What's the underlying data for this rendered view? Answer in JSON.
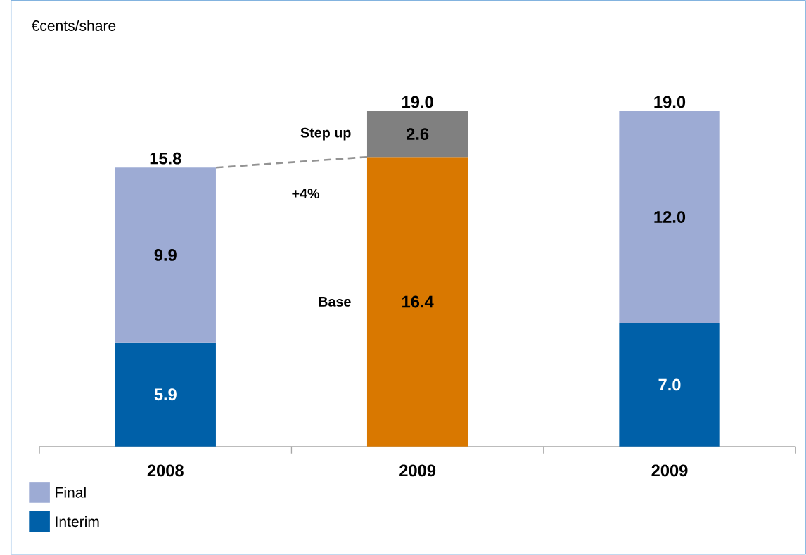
{
  "chart_data": {
    "type": "bar",
    "stacked": true,
    "categories": [
      "2008",
      "2009",
      "2009"
    ],
    "series": [
      {
        "name": "Interim",
        "color": "#0060a8",
        "values": [
          5.9,
          null,
          7.0
        ],
        "value_labels": [
          "5.9",
          null,
          "7.0"
        ]
      },
      {
        "name": "Final",
        "color": "#9dabd4",
        "values": [
          9.9,
          null,
          12.0
        ],
        "value_labels": [
          "9.9",
          null,
          "12.0"
        ]
      },
      {
        "name": "Base",
        "color": "#d97800",
        "values": [
          null,
          16.4,
          null
        ],
        "value_labels": [
          null,
          "16.4",
          null
        ]
      },
      {
        "name": "Step up",
        "color": "#808080",
        "values": [
          null,
          2.6,
          null
        ],
        "value_labels": [
          null,
          "2.6",
          null
        ]
      }
    ],
    "totals": [
      "15.8",
      "19.0",
      "19.0"
    ],
    "annotations": [
      "€cents/share",
      "+4%"
    ],
    "legend": "bottom left"
  }
}
